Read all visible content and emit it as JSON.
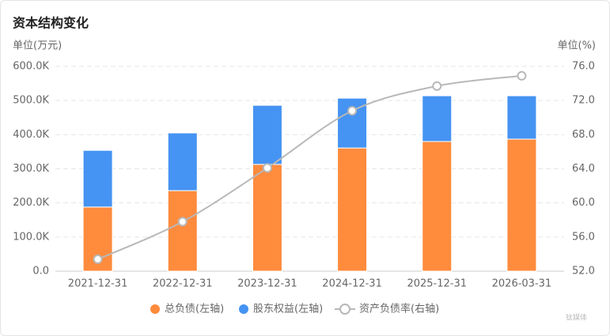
{
  "chart_data": {
    "type": "bar",
    "title": "资本结构变化",
    "y_unit": "单位(万元)",
    "y2_unit": "单位(%)",
    "categories": [
      "2021-12-31",
      "2022-12-31",
      "2023-12-31",
      "2024-12-31",
      "2025-12-31",
      "2026-03-31"
    ],
    "series": [
      {
        "name": "总负债(左轴)",
        "color": "#ff8b3d",
        "values": [
          188000,
          236000,
          313000,
          361000,
          380000,
          387000
        ]
      },
      {
        "name": "股东权益(左轴)",
        "color": "#4593f2",
        "values": [
          166000,
          169000,
          173000,
          146000,
          134000,
          127000
        ]
      },
      {
        "name": "资产负债率(右轴)",
        "color": "#b8b8b8",
        "axis": "y2",
        "values": [
          53.4,
          57.8,
          64.1,
          70.8,
          73.7,
          74.9
        ]
      }
    ],
    "stacked": true,
    "ylim": [
      0,
      600000
    ],
    "yticks": [
      {
        "value": 0,
        "label": "0.0"
      },
      {
        "value": 100000,
        "label": "100.0K"
      },
      {
        "value": 200000,
        "label": "200.0K"
      },
      {
        "value": 300000,
        "label": "300.0K"
      },
      {
        "value": 400000,
        "label": "400.0K"
      },
      {
        "value": 500000,
        "label": "500.0K"
      },
      {
        "value": 600000,
        "label": "600.0K"
      }
    ],
    "y2lim": [
      52,
      76
    ],
    "y2ticks": [
      {
        "value": 52,
        "label": "52.0"
      },
      {
        "value": 56,
        "label": "56.0"
      },
      {
        "value": 60,
        "label": "60.0"
      },
      {
        "value": 64,
        "label": "64.0"
      },
      {
        "value": 68,
        "label": "68.0"
      },
      {
        "value": 72,
        "label": "72.0"
      },
      {
        "value": 76,
        "label": "76.0"
      }
    ],
    "grid": true,
    "legend": "bottom",
    "watermark": "钛媒体"
  }
}
